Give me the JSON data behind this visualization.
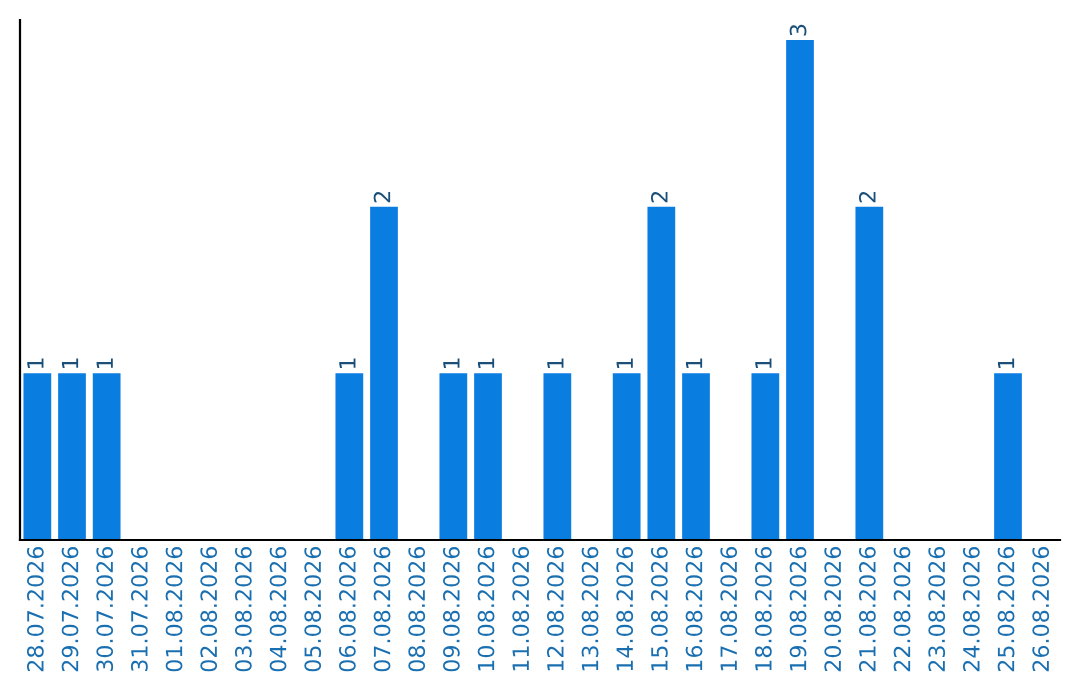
{
  "chart_data": {
    "type": "bar",
    "categories": [
      "28.07.2026",
      "29.07.2026",
      "30.07.2026",
      "31.07.2026",
      "01.08.2026",
      "02.08.2026",
      "03.08.2026",
      "04.08.2026",
      "05.08.2026",
      "06.08.2026",
      "07.08.2026",
      "08.08.2026",
      "09.08.2026",
      "10.08.2026",
      "11.08.2026",
      "12.08.2026",
      "13.08.2026",
      "14.08.2026",
      "15.08.2026",
      "16.08.2026",
      "17.08.2026",
      "18.08.2026",
      "19.08.2026",
      "20.08.2026",
      "21.08.2026",
      "22.08.2026",
      "23.08.2026",
      "24.08.2026",
      "25.08.2026",
      "26.08.2026"
    ],
    "values": [
      1,
      1,
      1,
      0,
      0,
      0,
      0,
      0,
      0,
      1,
      2,
      0,
      1,
      1,
      0,
      1,
      0,
      1,
      2,
      1,
      0,
      1,
      3,
      0,
      2,
      0,
      0,
      0,
      1,
      0
    ],
    "value_labels": [
      "1",
      "1",
      "1",
      null,
      null,
      null,
      null,
      null,
      null,
      "1",
      "2",
      null,
      "1",
      "1",
      null,
      "1",
      null,
      "1",
      "2",
      "1",
      null,
      "1",
      "3",
      null,
      "2",
      null,
      null,
      null,
      "1",
      null
    ],
    "color": "#0a7de0",
    "grid": false,
    "legend": false,
    "tick_labels": "x"
  }
}
